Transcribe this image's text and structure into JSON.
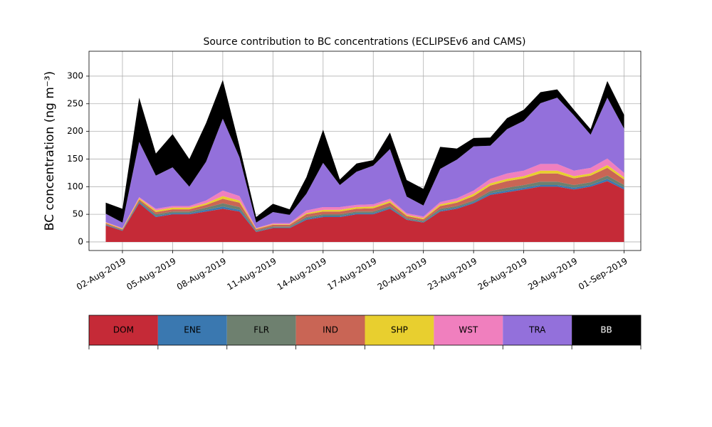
{
  "chart_data": {
    "type": "stacked_area",
    "title": "Source contribution to BC concentrations (ECLIPSEv6 and CAMS)",
    "y_label": "BC concentration (ng m⁻³)",
    "x": [
      "2019-08-01",
      "2019-08-02",
      "2019-08-03",
      "2019-08-04",
      "2019-08-05",
      "2019-08-06",
      "2019-08-07",
      "2019-08-08",
      "2019-08-09",
      "2019-08-10",
      "2019-08-11",
      "2019-08-12",
      "2019-08-13",
      "2019-08-14",
      "2019-08-15",
      "2019-08-16",
      "2019-08-17",
      "2019-08-18",
      "2019-08-19",
      "2019-08-20",
      "2019-08-21",
      "2019-08-22",
      "2019-08-23",
      "2019-08-24",
      "2019-08-25",
      "2019-08-26",
      "2019-08-27",
      "2019-08-28",
      "2019-08-29",
      "2019-08-30",
      "2019-08-31",
      "2019-09-01"
    ],
    "series": [
      {
        "name": "DOM",
        "color": "#c52a37",
        "values": [
          30,
          20,
          70,
          45,
          50,
          50,
          55,
          60,
          55,
          18,
          25,
          25,
          40,
          45,
          45,
          50,
          50,
          60,
          40,
          35,
          55,
          60,
          70,
          85,
          90,
          95,
          100,
          100,
          95,
          100,
          110,
          95
        ]
      },
      {
        "name": "ENE",
        "color": "#3a78b0",
        "values": [
          1,
          1,
          2,
          2,
          2,
          2,
          3,
          4,
          3,
          1,
          1,
          1,
          2,
          2,
          2,
          2,
          2,
          2,
          1,
          1,
          2,
          2,
          2,
          3,
          3,
          3,
          3,
          3,
          3,
          3,
          4,
          3
        ]
      },
      {
        "name": "FLR",
        "color": "#6e806f",
        "values": [
          1,
          1,
          2,
          3,
          3,
          3,
          4,
          6,
          5,
          2,
          2,
          2,
          3,
          3,
          3,
          3,
          3,
          3,
          2,
          2,
          3,
          3,
          3,
          4,
          5,
          5,
          6,
          6,
          5,
          5,
          6,
          5
        ]
      },
      {
        "name": "IND",
        "color": "#c96555",
        "values": [
          2,
          1,
          3,
          4,
          4,
          4,
          5,
          8,
          8,
          2,
          3,
          3,
          5,
          5,
          5,
          5,
          6,
          6,
          4,
          3,
          5,
          6,
          8,
          10,
          12,
          12,
          15,
          15,
          12,
          12,
          14,
          10
        ]
      },
      {
        "name": "SHP",
        "color": "#e8cf2f",
        "values": [
          1,
          1,
          2,
          3,
          3,
          3,
          3,
          5,
          4,
          1,
          1,
          1,
          2,
          3,
          3,
          3,
          3,
          3,
          2,
          2,
          3,
          3,
          4,
          4,
          4,
          4,
          5,
          5,
          4,
          4,
          5,
          4
        ]
      },
      {
        "name": "WST",
        "color": "#f07fbe",
        "values": [
          1,
          1,
          2,
          3,
          3,
          3,
          5,
          10,
          8,
          1,
          2,
          2,
          5,
          5,
          5,
          4,
          4,
          4,
          3,
          3,
          4,
          5,
          6,
          8,
          10,
          10,
          12,
          12,
          10,
          10,
          12,
          8
        ]
      },
      {
        "name": "TRA",
        "color": "#9370db",
        "values": [
          15,
          10,
          100,
          60,
          70,
          35,
          70,
          130,
          70,
          10,
          20,
          15,
          30,
          80,
          40,
          60,
          70,
          90,
          30,
          20,
          60,
          70,
          80,
          60,
          80,
          90,
          110,
          120,
          100,
          60,
          110,
          80
        ]
      },
      {
        "name": "BB",
        "color": "#000000",
        "values": [
          20,
          25,
          80,
          40,
          60,
          50,
          70,
          70,
          20,
          10,
          15,
          10,
          30,
          60,
          10,
          15,
          10,
          30,
          30,
          30,
          40,
          20,
          15,
          15,
          20,
          20,
          20,
          15,
          10,
          10,
          30,
          25
        ]
      }
    ],
    "xlim": [
      "2019-07-31",
      "2019-09-02"
    ],
    "xticks": [
      {
        "value": "2019-08-02",
        "label": "02-Aug-2019"
      },
      {
        "value": "2019-08-05",
        "label": "05-Aug-2019"
      },
      {
        "value": "2019-08-08",
        "label": "08-Aug-2019"
      },
      {
        "value": "2019-08-11",
        "label": "11-Aug-2019"
      },
      {
        "value": "2019-08-14",
        "label": "14-Aug-2019"
      },
      {
        "value": "2019-08-17",
        "label": "17-Aug-2019"
      },
      {
        "value": "2019-08-20",
        "label": "20-Aug-2019"
      },
      {
        "value": "2019-08-23",
        "label": "23-Aug-2019"
      },
      {
        "value": "2019-08-26",
        "label": "26-Aug-2019"
      },
      {
        "value": "2019-08-29",
        "label": "29-Aug-2019"
      },
      {
        "value": "2019-09-01",
        "label": "01-Sep-2019"
      }
    ],
    "ylim": [
      -15.5,
      345
    ],
    "yticks": [
      0,
      50,
      100,
      150,
      200,
      250,
      300
    ],
    "grid": true,
    "legend": "bottom"
  }
}
